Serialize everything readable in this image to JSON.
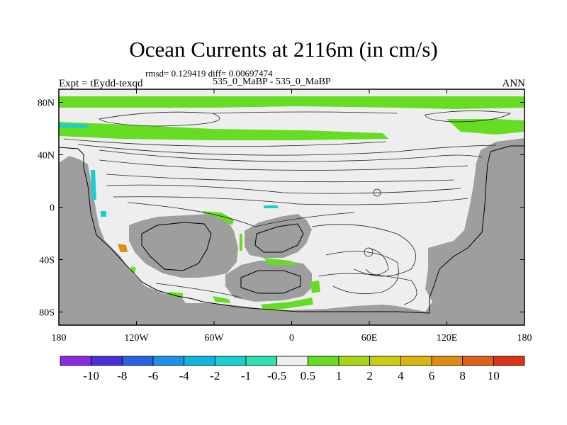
{
  "title": "Ocean Currents at 2116m (in cm/s)",
  "stats": "rmsd= 0.129419 diff= 0.00697474",
  "expt_label": "Expt = tEydd-texqd",
  "case_label": "535_0_MaBP - 535_0_MaBP",
  "season": "ANN",
  "map": {
    "lat_ticks": [
      "80N",
      "40N",
      "0",
      "40S",
      "80S"
    ],
    "lon_ticks": [
      "180",
      "120W",
      "60W",
      "0",
      "60E",
      "120E",
      "180"
    ],
    "lat_values": [
      80,
      40,
      0,
      -40,
      -80
    ],
    "lon_values": [
      -180,
      -120,
      -60,
      0,
      60,
      120,
      180
    ],
    "lat_range": [
      -90,
      90
    ],
    "lon_range": [
      -180,
      180
    ],
    "land_color": "#9e9e9e",
    "ocean_color": "#eeeeee"
  },
  "colorbar": {
    "colors": [
      "#8a2be2",
      "#4a30d8",
      "#2a62e0",
      "#1e90e8",
      "#12b4e0",
      "#17cfd0",
      "#2ee0b0",
      "#eeeeee",
      "#66dd22",
      "#a8d41a",
      "#cccc10",
      "#d9b40c",
      "#e08c10",
      "#e06018",
      "#dc3414"
    ],
    "labels": [
      "-10",
      "-8",
      "-6",
      "-4",
      "-2",
      "-1",
      "-0.5",
      "0.5",
      "1",
      "2",
      "4",
      "6",
      "8",
      "10"
    ]
  }
}
